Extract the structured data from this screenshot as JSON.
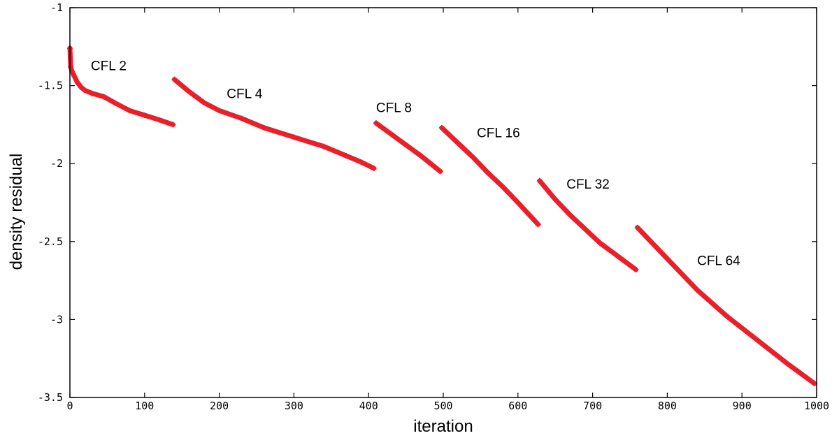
{
  "chart_data": {
    "type": "line",
    "title": "",
    "xlabel": "iteration",
    "ylabel": "density residual",
    "xlim": [
      0,
      1000
    ],
    "ylim": [
      -3.5,
      -1
    ],
    "xticks": [
      {
        "value": 0,
        "label": "0"
      },
      {
        "value": 100,
        "label": "100"
      },
      {
        "value": 200,
        "label": "200"
      },
      {
        "value": 300,
        "label": "300"
      },
      {
        "value": 400,
        "label": "400"
      },
      {
        "value": 500,
        "label": "500"
      },
      {
        "value": 600,
        "label": "600"
      },
      {
        "value": 700,
        "label": "700"
      },
      {
        "value": 800,
        "label": "800"
      },
      {
        "value": 900,
        "label": "900"
      },
      {
        "value": 1000,
        "label": "1000"
      }
    ],
    "yticks": [
      {
        "value": -1,
        "label": "-1"
      },
      {
        "value": -1.5,
        "label": "-1.5"
      },
      {
        "value": -2,
        "label": "-2"
      },
      {
        "value": -2.5,
        "label": "-2.5"
      },
      {
        "value": -3,
        "label": "-3"
      },
      {
        "value": -3.5,
        "label": "-3.5"
      }
    ],
    "grid": false,
    "legend": "none",
    "series_color": "#e8202a",
    "marker": "plus",
    "series": [
      {
        "points": [
          [
            0,
            -1.26
          ],
          [
            1,
            -1.38
          ],
          [
            3,
            -1.41
          ],
          [
            6,
            -1.44
          ],
          [
            10,
            -1.48
          ],
          [
            15,
            -1.51
          ],
          [
            20,
            -1.53
          ],
          [
            30,
            -1.55
          ],
          [
            45,
            -1.57
          ],
          [
            60,
            -1.61
          ],
          [
            80,
            -1.66
          ],
          [
            100,
            -1.69
          ],
          [
            120,
            -1.72
          ],
          [
            138,
            -1.75
          ]
        ]
      },
      {
        "points": [
          [
            140,
            -1.46
          ],
          [
            160,
            -1.54
          ],
          [
            180,
            -1.61
          ],
          [
            200,
            -1.66
          ],
          [
            230,
            -1.71
          ],
          [
            260,
            -1.77
          ],
          [
            300,
            -1.83
          ],
          [
            340,
            -1.89
          ],
          [
            370,
            -1.95
          ],
          [
            390,
            -1.99
          ],
          [
            407,
            -2.03
          ]
        ]
      },
      {
        "points": [
          [
            410,
            -1.74
          ],
          [
            430,
            -1.81
          ],
          [
            450,
            -1.88
          ],
          [
            470,
            -1.95
          ],
          [
            496,
            -2.05
          ]
        ]
      },
      {
        "points": [
          [
            498,
            -1.77
          ],
          [
            520,
            -1.87
          ],
          [
            540,
            -1.96
          ],
          [
            560,
            -2.06
          ],
          [
            580,
            -2.15
          ],
          [
            600,
            -2.25
          ],
          [
            627,
            -2.39
          ]
        ]
      },
      {
        "points": [
          [
            629,
            -2.11
          ],
          [
            650,
            -2.23
          ],
          [
            670,
            -2.33
          ],
          [
            690,
            -2.42
          ],
          [
            710,
            -2.51
          ],
          [
            730,
            -2.58
          ],
          [
            758,
            -2.68
          ]
        ]
      },
      {
        "points": [
          [
            760,
            -2.41
          ],
          [
            800,
            -2.61
          ],
          [
            840,
            -2.81
          ],
          [
            880,
            -2.98
          ],
          [
            920,
            -3.13
          ],
          [
            960,
            -3.28
          ],
          [
            997,
            -3.41
          ]
        ]
      }
    ],
    "annotations": [
      {
        "text": "CFL 2",
        "x": 28,
        "y": -1.4
      },
      {
        "text": "CFL 4",
        "x": 210,
        "y": -1.58
      },
      {
        "text": "CFL 8",
        "x": 410,
        "y": -1.67
      },
      {
        "text": "CFL 16",
        "x": 545,
        "y": -1.83
      },
      {
        "text": "CFL 32",
        "x": 665,
        "y": -2.16
      },
      {
        "text": "CFL 64",
        "x": 840,
        "y": -2.65
      }
    ]
  }
}
